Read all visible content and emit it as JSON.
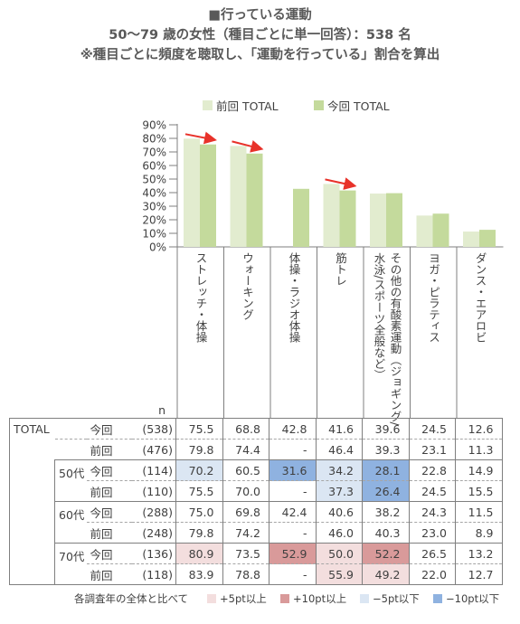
{
  "title": {
    "line1": "■行っている運動",
    "line2": "50～79 歳の女性（種目ごとに単一回答）：538 名",
    "line3": "※種目ごとに頻度を聴取し、「運動を行っている」割合を算出"
  },
  "colors": {
    "prev": "#e2eccf",
    "curr": "#c4da9c",
    "arrow": "#e8322a",
    "plus5": "#f3dede",
    "plus10": "#d99a9a",
    "minus5": "#dbe6f3",
    "minus10": "#8fb2e0"
  },
  "legend": {
    "prev": "前回 TOTAL",
    "curr": "今回 TOTAL"
  },
  "chart_data": {
    "type": "bar",
    "categories": [
      "ストレッチ・体操",
      "ウォーキング",
      "体操・ラジオ体操",
      "筋トレ",
      "その他の有酸素運動（ジョギング/水泳/スポーツ全般など）",
      "ヨガ・ピラティス",
      "ダンス・エアロビ"
    ],
    "series": [
      {
        "name": "前回 TOTAL",
        "values": [
          79.8,
          74.4,
          null,
          46.4,
          39.3,
          23.1,
          11.3
        ]
      },
      {
        "name": "今回 TOTAL",
        "values": [
          75.5,
          68.8,
          42.8,
          41.6,
          39.6,
          24.5,
          12.6
        ]
      }
    ],
    "yticks": [
      "90%",
      "80%",
      "70%",
      "60%",
      "50%",
      "40%",
      "30%",
      "20%",
      "10%",
      "0%"
    ],
    "ylim": [
      0,
      90
    ],
    "arrows_on": [
      "ストレッチ・体操",
      "ウォーキング",
      "筋トレ"
    ],
    "legend_position": "top"
  },
  "table": {
    "n_header": "n",
    "rows": [
      {
        "group": "TOTAL",
        "sub": "",
        "kind": "今回",
        "n": "(538)",
        "values": [
          "75.5",
          "68.8",
          "42.8",
          "41.6",
          "39.6",
          "24.5",
          "12.6"
        ],
        "highlight": [
          null,
          null,
          null,
          null,
          null,
          null,
          null
        ]
      },
      {
        "group": "",
        "sub": "",
        "kind": "前回",
        "n": "(476)",
        "values": [
          "79.8",
          "74.4",
          "-",
          "46.4",
          "39.3",
          "23.1",
          "11.3"
        ],
        "highlight": [
          null,
          null,
          null,
          null,
          null,
          null,
          null
        ]
      },
      {
        "group": "",
        "sub": "50代",
        "kind": "今回",
        "n": "(114)",
        "values": [
          "70.2",
          "60.5",
          "31.6",
          "34.2",
          "28.1",
          "22.8",
          "14.9"
        ],
        "highlight": [
          "minus5",
          null,
          "minus10",
          "minus5",
          "minus10",
          null,
          null
        ]
      },
      {
        "group": "",
        "sub": "",
        "kind": "前回",
        "n": "(110)",
        "values": [
          "75.5",
          "70.0",
          "-",
          "37.3",
          "26.4",
          "24.5",
          "15.5"
        ],
        "highlight": [
          null,
          null,
          null,
          "minus5",
          "minus10",
          null,
          null
        ]
      },
      {
        "group": "",
        "sub": "60代",
        "kind": "今回",
        "n": "(288)",
        "values": [
          "75.0",
          "69.8",
          "42.4",
          "40.6",
          "38.2",
          "24.3",
          "11.5"
        ],
        "highlight": [
          null,
          null,
          null,
          null,
          null,
          null,
          null
        ]
      },
      {
        "group": "",
        "sub": "",
        "kind": "前回",
        "n": "(248)",
        "values": [
          "79.8",
          "74.2",
          "-",
          "46.0",
          "40.3",
          "23.0",
          "8.9"
        ],
        "highlight": [
          null,
          null,
          null,
          null,
          null,
          null,
          null
        ]
      },
      {
        "group": "",
        "sub": "70代",
        "kind": "今回",
        "n": "(136)",
        "values": [
          "80.9",
          "73.5",
          "52.9",
          "50.0",
          "52.2",
          "26.5",
          "13.2"
        ],
        "highlight": [
          "plus5",
          null,
          "plus10",
          "plus5",
          "plus10",
          null,
          null
        ]
      },
      {
        "group": "",
        "sub": "",
        "kind": "前回",
        "n": "(118)",
        "values": [
          "83.9",
          "78.8",
          "-",
          "55.9",
          "49.2",
          "22.0",
          "12.7"
        ],
        "highlight": [
          null,
          null,
          null,
          "plus5",
          "plus5",
          null,
          null
        ]
      }
    ]
  },
  "notes": {
    "intro": "各調査年の全体と比べて",
    "plus5": "+5pt以上",
    "plus10": "+10pt以上",
    "minus5": "−5pt以下",
    "minus10": "−10pt以下"
  }
}
